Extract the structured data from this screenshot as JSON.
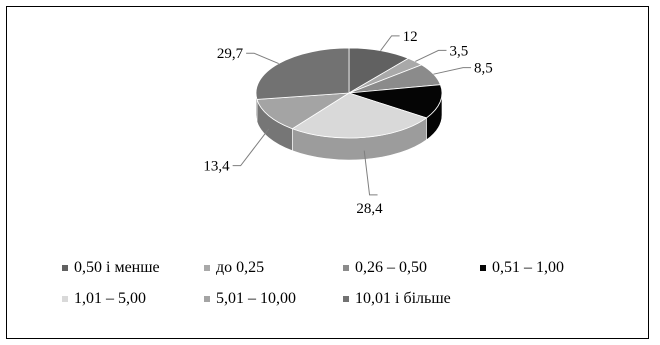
{
  "chart_data": {
    "type": "pie",
    "style": "3d",
    "categories": [
      "0,50 і менше",
      "до 0,25",
      "0,26 – 0,50",
      "0,51 – 1,00",
      "1,01 – 5,00",
      "5,01 – 10,00",
      "10,01 і більше"
    ],
    "values": [
      12,
      3.5,
      8.5,
      13.4,
      28.4,
      13.4,
      29.7
    ],
    "value_labels": [
      "12",
      "3,5",
      "8,5",
      "",
      "28,4",
      "13,4",
      "29,7"
    ],
    "colors": [
      "#616161",
      "#a9a9a9",
      "#8b8b8b",
      "#050505",
      "#d9d9d9",
      "#a4a4a4",
      "#727272"
    ],
    "legend_position": "bottom",
    "title": ""
  }
}
